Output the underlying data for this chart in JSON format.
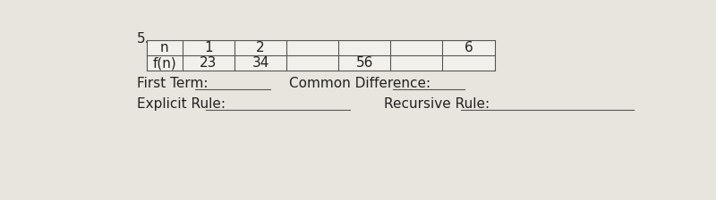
{
  "title_number": "5.",
  "table": {
    "col0_header": "n",
    "col0_data": "f(n)",
    "headers": [
      "1",
      "2",
      "",
      "",
      "",
      "6"
    ],
    "values": [
      "23",
      "34",
      "",
      "56",
      "",
      ""
    ]
  },
  "labels": {
    "first_term": "First Term:",
    "common_diff": "Common Difference:",
    "explicit_rule": "Explicit Rule:",
    "recursive_rule": "Recursive Rule:"
  },
  "background_color": "#e8e5de",
  "table_bg": "#f2f0eb",
  "line_color": "#555555",
  "text_color": "#222222",
  "font_size": 11
}
